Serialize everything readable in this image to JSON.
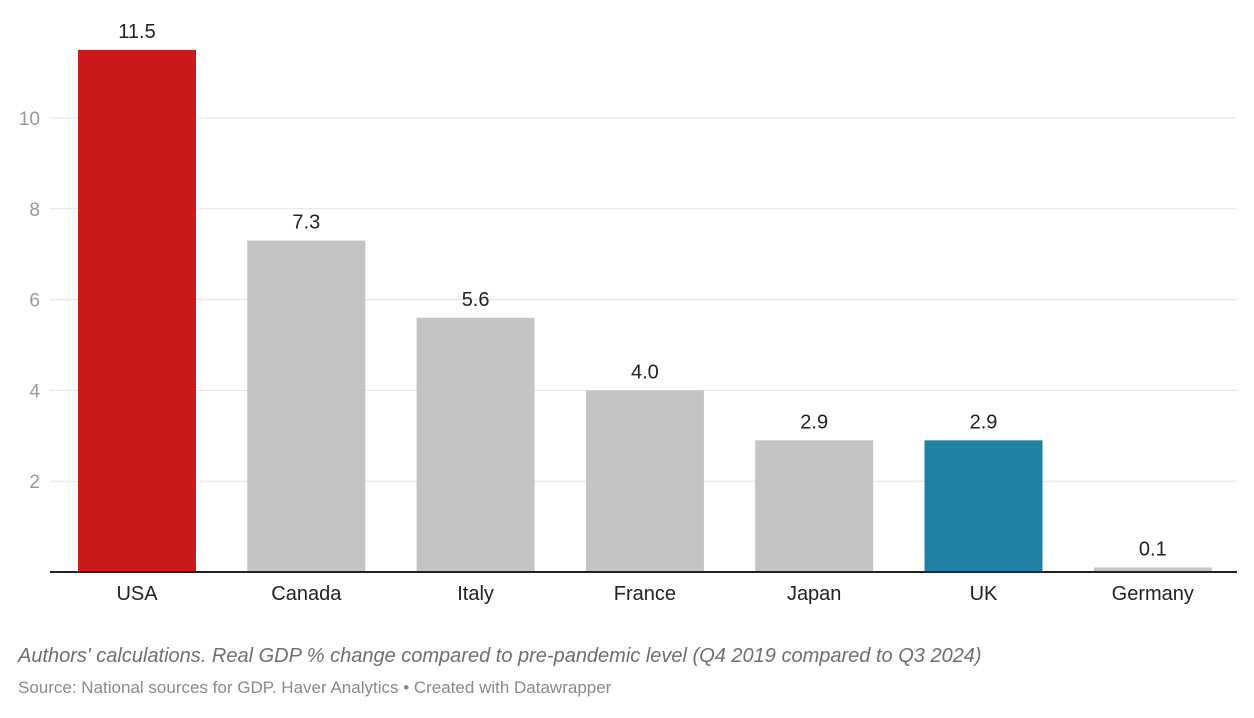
{
  "chart_data": {
    "type": "bar",
    "categories": [
      "USA",
      "Canada",
      "Italy",
      "France",
      "Japan",
      "UK",
      "Germany"
    ],
    "values": [
      11.5,
      7.3,
      5.6,
      4.0,
      2.9,
      2.9,
      0.1
    ],
    "value_labels": [
      "11.5",
      "7.3",
      "5.6",
      "4.0",
      "2.9",
      "2.9",
      "0.1"
    ],
    "bar_colors": [
      "#c91b1b",
      "#c4c4c4",
      "#c4c4c4",
      "#c4c4c4",
      "#c4c4c4",
      "#1f82a3",
      "#c4c4c4"
    ],
    "yticks": [
      2,
      4,
      6,
      8,
      10
    ],
    "ylim": [
      0,
      12.5
    ],
    "grid": true,
    "xlabel": "",
    "ylabel": "",
    "title": ""
  },
  "notes": {
    "description": "Authors' calculations. Real GDP % change compared to pre-pandemic level (Q4 2019 compared to Q3 2024)",
    "source": "Source: National sources for GDP. Haver Analytics • Created with Datawrapper"
  }
}
